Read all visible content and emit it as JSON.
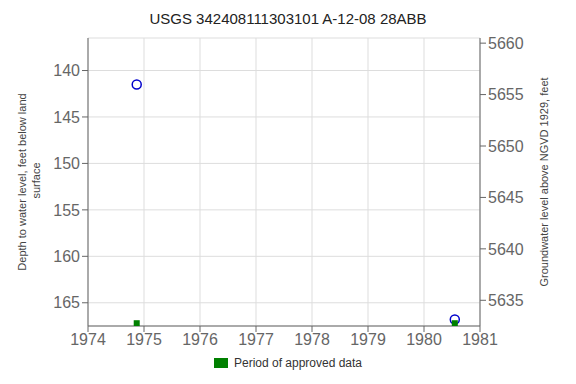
{
  "chart_data": {
    "type": "scatter",
    "title": "USGS 342408111303101 A-12-08 28ABB",
    "ylabel": "Depth to water level, feet below land\n surface",
    "y2label": "Groundwater level above NGVD 1929, feet",
    "x": [
      1974.87,
      1980.55
    ],
    "xlim": [
      1974,
      1981
    ],
    "xticks": [
      1974,
      1975,
      1976,
      1977,
      1978,
      1979,
      1980,
      1981
    ],
    "ylim": [
      167.5,
      136.5
    ],
    "yticks": [
      140,
      145,
      150,
      155,
      160,
      165
    ],
    "y2lim": [
      5632.5,
      5660.5
    ],
    "y2ticks": [
      5660,
      5655,
      5650,
      5645,
      5640,
      5635
    ],
    "grid": true,
    "legend": "bottom",
    "series": [
      {
        "color": "#0000cc",
        "marker": "open_circle",
        "values": [
          141.5,
          166.8
        ]
      },
      {
        "name": "Period of approved data",
        "color": "#008000",
        "marker": "square",
        "values": [
          167.2,
          167.2
        ]
      }
    ]
  }
}
